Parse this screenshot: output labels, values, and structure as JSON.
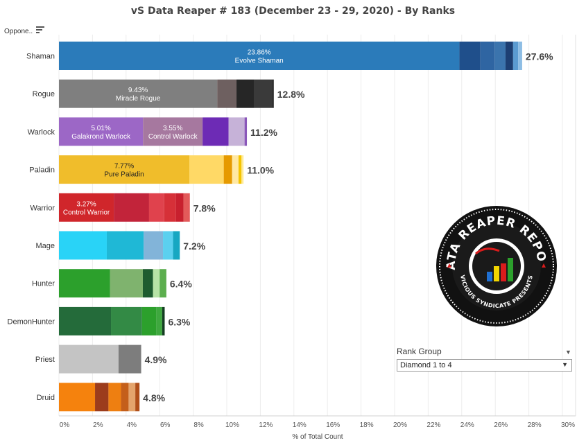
{
  "title": "vS Data Reaper #  183 (December 23 - 29, 2020) - By Ranks",
  "sort_label": "Oppone..",
  "filter": {
    "title": "Rank Group",
    "value": "Diamond 1 to 4"
  },
  "logo": {
    "line1": "DATA REAPER REPORT",
    "line2": "VICIOUS SYNDICATE PRESENTS"
  },
  "chart_data": {
    "type": "bar",
    "orientation": "horizontal",
    "stacked": true,
    "xlabel": "% of Total Count",
    "xlim": [
      0,
      31
    ],
    "x_ticks": [
      "0%",
      "2%",
      "4%",
      "6%",
      "8%",
      "10%",
      "12%",
      "14%",
      "16%",
      "18%",
      "20%",
      "22%",
      "24%",
      "26%",
      "28%",
      "30%"
    ],
    "categories": [
      "Shaman",
      "Rogue",
      "Warlock",
      "Paladin",
      "Warrior",
      "Mage",
      "Hunter",
      "DemonHunter",
      "Priest",
      "Druid"
    ],
    "totals": [
      "27.6%",
      "12.8%",
      "11.2%",
      "11.0%",
      "7.8%",
      "7.2%",
      "6.4%",
      "6.3%",
      "4.9%",
      "4.8%"
    ],
    "rows": [
      {
        "category": "Shaman",
        "segments": [
          {
            "value": 23.86,
            "color": "#2b7bba",
            "pct_label": "23.86%",
            "name": "Evolve Shaman"
          },
          {
            "value": 1.25,
            "color": "#1f4f8b"
          },
          {
            "value": 0.85,
            "color": "#2f65a2"
          },
          {
            "value": 0.65,
            "color": "#3b74ad"
          },
          {
            "value": 0.45,
            "color": "#1d3f73"
          },
          {
            "value": 0.3,
            "color": "#5b9bd1"
          },
          {
            "value": 0.24,
            "color": "#8dbde4"
          }
        ]
      },
      {
        "category": "Rogue",
        "segments": [
          {
            "value": 9.43,
            "color": "#7f7f7f",
            "pct_label": "9.43%",
            "name": "Miracle Rogue"
          },
          {
            "value": 1.15,
            "color": "#6e6060"
          },
          {
            "value": 1.05,
            "color": "#262626"
          },
          {
            "value": 1.1,
            "color": "#3a3a3a"
          },
          {
            "value": 0.07,
            "color": "#1b1b1b"
          }
        ]
      },
      {
        "category": "Warlock",
        "segments": [
          {
            "value": 5.01,
            "color": "#9c67c6",
            "pct_label": "5.01%",
            "name": "Galakrond Warlock"
          },
          {
            "value": 3.55,
            "color": "#a6789f",
            "pct_label": "3.55%",
            "name": "Control Warlock"
          },
          {
            "value": 1.55,
            "color": "#6d2bb5"
          },
          {
            "value": 0.95,
            "color": "#c6b2d8"
          },
          {
            "value": 0.14,
            "color": "#8a57b9"
          }
        ]
      },
      {
        "category": "Paladin",
        "segments": [
          {
            "value": 7.77,
            "color": "#f0bd2b",
            "pct_label": "7.77%",
            "name": "Pure Paladin"
          },
          {
            "value": 2.05,
            "color": "#ffd966"
          },
          {
            "value": 0.5,
            "color": "#e69a00"
          },
          {
            "value": 0.38,
            "color": "#ffe8a3"
          },
          {
            "value": 0.18,
            "color": "#f5c400"
          },
          {
            "value": 0.12,
            "color": "#ffeb99"
          }
        ]
      },
      {
        "category": "Warrior",
        "segments": [
          {
            "value": 3.27,
            "color": "#d0262b",
            "pct_label": "3.27%",
            "name": "Control Warrior"
          },
          {
            "value": 2.1,
            "color": "#c2243a"
          },
          {
            "value": 0.9,
            "color": "#e0424d"
          },
          {
            "value": 0.7,
            "color": "#d63038"
          },
          {
            "value": 0.45,
            "color": "#c8202e"
          },
          {
            "value": 0.38,
            "color": "#e35a5a"
          }
        ]
      },
      {
        "category": "Mage",
        "segments": [
          {
            "value": 2.85,
            "color": "#29d3f7"
          },
          {
            "value": 2.2,
            "color": "#1fb8d6"
          },
          {
            "value": 1.15,
            "color": "#82b4d9"
          },
          {
            "value": 0.6,
            "color": "#5bd0ef"
          },
          {
            "value": 0.4,
            "color": "#17a7c2"
          }
        ]
      },
      {
        "category": "Hunter",
        "segments": [
          {
            "value": 3.05,
            "color": "#2ca02c"
          },
          {
            "value": 1.95,
            "color": "#7fb36e"
          },
          {
            "value": 0.6,
            "color": "#1e5c2f"
          },
          {
            "value": 0.4,
            "color": "#b7e3a6"
          },
          {
            "value": 0.4,
            "color": "#5cae4e"
          }
        ]
      },
      {
        "category": "DemonHunter",
        "segments": [
          {
            "value": 3.1,
            "color": "#246b3a"
          },
          {
            "value": 1.85,
            "color": "#338a45"
          },
          {
            "value": 0.85,
            "color": "#2ca02c"
          },
          {
            "value": 0.35,
            "color": "#3fa83f"
          },
          {
            "value": 0.15,
            "color": "#143d22"
          }
        ]
      },
      {
        "category": "Priest",
        "segments": [
          {
            "value": 3.55,
            "color": "#c4c4c4"
          },
          {
            "value": 1.35,
            "color": "#7d7d7d"
          }
        ]
      },
      {
        "category": "Druid",
        "segments": [
          {
            "value": 2.15,
            "color": "#f5820d"
          },
          {
            "value": 0.8,
            "color": "#9c3c1c"
          },
          {
            "value": 0.75,
            "color": "#ee7f11"
          },
          {
            "value": 0.45,
            "color": "#c45f1a"
          },
          {
            "value": 0.4,
            "color": "#e4a46c"
          },
          {
            "value": 0.25,
            "color": "#b04f19"
          }
        ]
      }
    ]
  }
}
